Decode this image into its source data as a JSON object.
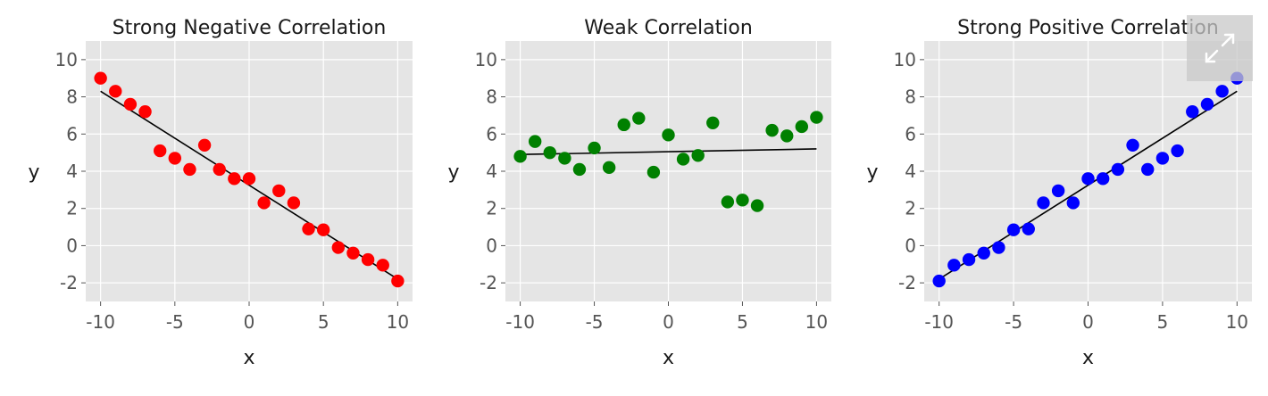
{
  "chart_data": [
    {
      "type": "scatter",
      "title": "Strong Negative Correlation",
      "xlabel": "x",
      "ylabel": "y",
      "xlim": [
        -11,
        11
      ],
      "ylim": [
        -3,
        11
      ],
      "xticks": [
        -10,
        -5,
        0,
        5,
        10
      ],
      "yticks": [
        -2,
        0,
        2,
        4,
        6,
        8,
        10
      ],
      "grid": true,
      "point_color": "#ff0000",
      "line_color": "#000000",
      "points": {
        "x": [
          -10,
          -9,
          -8,
          -7,
          -6,
          -5,
          -4,
          -3,
          -2,
          -1,
          0,
          1,
          2,
          3,
          4,
          5,
          6,
          7,
          8,
          9,
          10
        ],
        "y": [
          9.0,
          8.3,
          7.6,
          7.2,
          5.1,
          4.7,
          4.1,
          5.4,
          4.1,
          3.6,
          3.6,
          2.3,
          2.95,
          2.3,
          0.9,
          0.85,
          -0.1,
          -0.4,
          -0.75,
          -1.05,
          -1.9
        ]
      },
      "trend": {
        "x": [
          -10,
          10
        ],
        "y": [
          8.3,
          -1.8
        ]
      }
    },
    {
      "type": "scatter",
      "title": "Weak Correlation",
      "xlabel": "x",
      "ylabel": "y",
      "xlim": [
        -11,
        11
      ],
      "ylim": [
        -3,
        11
      ],
      "xticks": [
        -10,
        -5,
        0,
        5,
        10
      ],
      "yticks": [
        -2,
        0,
        2,
        4,
        6,
        8,
        10
      ],
      "grid": true,
      "point_color": "#008000",
      "line_color": "#000000",
      "points": {
        "x": [
          -10,
          -9,
          -8,
          -7,
          -6,
          -5,
          -4,
          -3,
          -2,
          -1,
          0,
          1,
          2,
          3,
          4,
          5,
          6,
          7,
          8,
          9,
          10
        ],
        "y": [
          4.8,
          5.6,
          5.0,
          4.7,
          4.1,
          5.25,
          4.2,
          6.5,
          6.85,
          3.95,
          5.95,
          4.65,
          4.85,
          6.6,
          2.35,
          2.45,
          2.15,
          6.2,
          5.9,
          6.4,
          6.9
        ]
      },
      "trend": {
        "x": [
          -10,
          10
        ],
        "y": [
          4.9,
          5.2
        ]
      }
    },
    {
      "type": "scatter",
      "title": "Strong Positive Correlation",
      "xlabel": "x",
      "ylabel": "y",
      "xlim": [
        -11,
        11
      ],
      "ylim": [
        -3,
        11
      ],
      "xticks": [
        -10,
        -5,
        0,
        5,
        10
      ],
      "yticks": [
        -2,
        0,
        2,
        4,
        6,
        8,
        10
      ],
      "grid": true,
      "point_color": "#0000ff",
      "line_color": "#000000",
      "points": {
        "x": [
          -10,
          -9,
          -8,
          -7,
          -6,
          -5,
          -4,
          -3,
          -2,
          -1,
          0,
          1,
          2,
          3,
          4,
          5,
          6,
          7,
          8,
          9,
          10
        ],
        "y": [
          -1.9,
          -1.05,
          -0.75,
          -0.4,
          -0.1,
          0.85,
          0.9,
          2.3,
          2.95,
          2.3,
          3.6,
          3.6,
          4.1,
          5.4,
          4.1,
          4.7,
          5.1,
          7.2,
          7.6,
          8.3,
          9.0
        ]
      },
      "trend": {
        "x": [
          -10,
          10
        ],
        "y": [
          -1.8,
          8.3
        ]
      }
    }
  ],
  "overlay": {
    "icon": "expand-icon"
  }
}
